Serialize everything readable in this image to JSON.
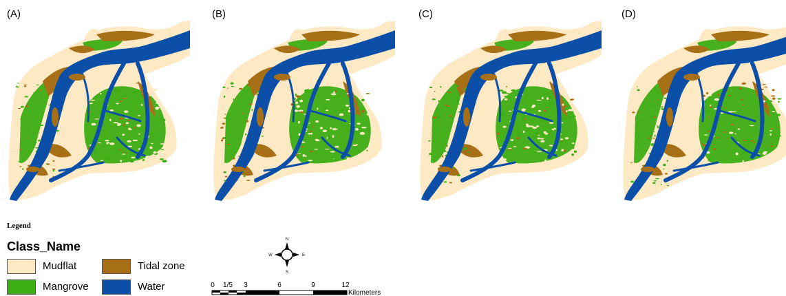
{
  "panels": [
    {
      "label": "(A)"
    },
    {
      "label": "(B)"
    },
    {
      "label": "(C)"
    },
    {
      "label": "(D)"
    }
  ],
  "legend": {
    "title": "Legend",
    "class_title": "Class_Name",
    "items": [
      {
        "label": "Mudflat",
        "color": "#fde9c4"
      },
      {
        "label": "Tidal zone",
        "color": "#a87016"
      },
      {
        "label": "Mangrove",
        "color": "#3dae14"
      },
      {
        "label": "Water",
        "color": "#0b4fa8"
      }
    ]
  },
  "compass": {
    "n": "N",
    "s": "S",
    "e": "E",
    "w": "W"
  },
  "scale": {
    "ticks": [
      "0",
      "1/5",
      "3",
      "6",
      "9",
      "12"
    ],
    "unit": "Kilometers"
  }
}
